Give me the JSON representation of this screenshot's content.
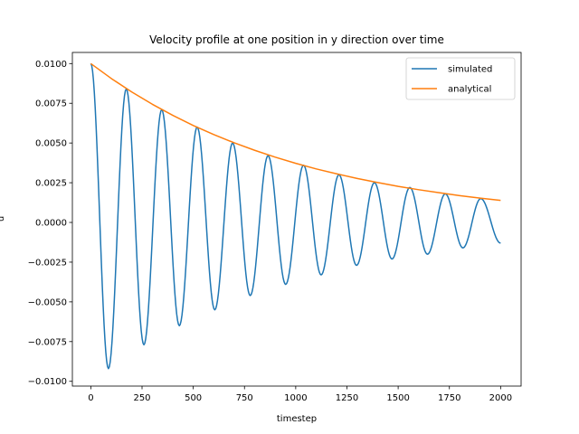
{
  "chart_data": {
    "type": "line",
    "title": "Velocity profile at one position in y direction over time",
    "xlabel": "timestep",
    "ylabel": "u",
    "xlim": [
      -90,
      2100
    ],
    "ylim": [
      -0.0103,
      0.0107
    ],
    "xticks": [
      0,
      250,
      500,
      750,
      1000,
      1250,
      1500,
      1750,
      2000
    ],
    "xtick_labels": [
      "0",
      "250",
      "500",
      "750",
      "1000",
      "1250",
      "1500",
      "1750",
      "2000"
    ],
    "yticks": [
      -0.01,
      -0.0075,
      -0.005,
      -0.0025,
      0.0,
      0.0025,
      0.005,
      0.0075,
      0.01
    ],
    "ytick_labels": [
      "−0.0100",
      "−0.0075",
      "−0.0050",
      "−0.0025",
      "0.0000",
      "0.0025",
      "0.0050",
      "0.0075",
      "0.0100"
    ],
    "legend_position": "top-right",
    "series": [
      {
        "name": "simulated",
        "color": "#1f77b4",
        "x": [
          0,
          86,
          173,
          259,
          346,
          432,
          519,
          605,
          692,
          778,
          865,
          951,
          1038,
          1124,
          1211,
          1297,
          1384,
          1470,
          1557,
          1643,
          1730,
          1816,
          1903,
          2000
        ],
        "values": [
          0.01,
          -0.0092,
          0.0084,
          -0.0077,
          0.0071,
          -0.0065,
          0.006,
          -0.0055,
          0.005,
          -0.0046,
          0.0042,
          -0.0039,
          0.0036,
          -0.0033,
          0.003,
          -0.0027,
          0.0025,
          -0.0023,
          0.0022,
          -0.002,
          0.0018,
          -0.0016,
          0.0015,
          -0.0013
        ]
      },
      {
        "name": "analytical",
        "color": "#ff7f0e",
        "x": [
          0,
          100,
          200,
          300,
          400,
          500,
          600,
          700,
          800,
          900,
          1000,
          1100,
          1200,
          1300,
          1400,
          1500,
          1600,
          1700,
          1800,
          1900,
          2000
        ],
        "values": [
          0.01,
          0.00906,
          0.00821,
          0.00744,
          0.00674,
          0.0061,
          0.00553,
          0.00501,
          0.00454,
          0.00411,
          0.00372,
          0.00337,
          0.00306,
          0.00277,
          0.00251,
          0.00227,
          0.00206,
          0.00187,
          0.00169,
          0.00153,
          0.00139
        ]
      }
    ]
  }
}
